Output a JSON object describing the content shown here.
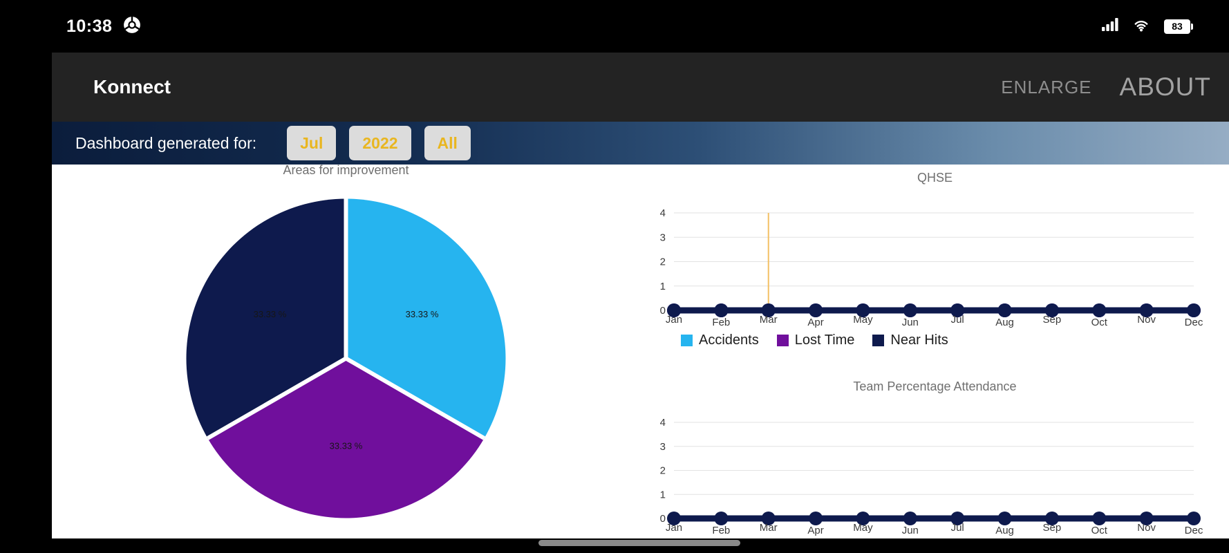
{
  "status_bar": {
    "time": "10:38",
    "battery": "83"
  },
  "app_bar": {
    "title": "Konnect",
    "actions": [
      {
        "label": "ENLARGE"
      },
      {
        "label": "ABOUT"
      }
    ]
  },
  "filter_bar": {
    "label": "Dashboard generated for:",
    "buttons": [
      {
        "label": "Jul"
      },
      {
        "label": "2022"
      },
      {
        "label": "All"
      }
    ],
    "chip_text_color": "#e9b620"
  },
  "chart_data": [
    {
      "type": "pie",
      "title": "Areas for improvement",
      "start_angle": -90,
      "direction": "clockwise",
      "slices": [
        {
          "value": 33.33,
          "label": "33.33 %",
          "color": "#26b4ef"
        },
        {
          "value": 33.33,
          "label": "33.33 %",
          "color": "#700f9c"
        },
        {
          "value": 33.33,
          "label": "33.33 %",
          "color": "#0e1a4d"
        }
      ]
    },
    {
      "type": "line",
      "title": "QHSE",
      "x": [
        "Jan",
        "Feb",
        "Mar",
        "Apr",
        "May",
        "Jun",
        "Jul",
        "Aug",
        "Sep",
        "Oct",
        "Nov",
        "Dec"
      ],
      "ylim": [
        0,
        4
      ],
      "yticks": [
        4,
        3,
        2,
        1,
        0
      ],
      "series": [
        {
          "name": "Accidents",
          "color": "#26b4ef",
          "values": [
            0,
            0,
            0,
            0,
            0,
            0,
            0,
            0,
            0,
            0,
            0,
            0
          ]
        },
        {
          "name": "Lost Time",
          "color": "#700f9c",
          "values": [
            0,
            0,
            0,
            0,
            0,
            0,
            0,
            0,
            0,
            0,
            0,
            0
          ]
        },
        {
          "name": "Near Hits",
          "color": "#0e1a4d",
          "values": [
            0,
            0,
            0,
            0,
            0,
            0,
            0,
            0,
            0,
            0,
            0,
            0
          ]
        }
      ],
      "annotation": {
        "type": "vline",
        "x": "Mar",
        "color": "#f3c064"
      },
      "legend": true,
      "grid": true
    },
    {
      "type": "line",
      "title": "Team Percentage Attendance",
      "x": [
        "Jan",
        "Feb",
        "Mar",
        "Apr",
        "May",
        "Jun",
        "Jul",
        "Aug",
        "Sep",
        "Oct",
        "Nov",
        "Dec"
      ],
      "ylim": [
        0,
        4
      ],
      "yticks": [
        4,
        3,
        2,
        1,
        0
      ],
      "series": [
        {
          "name": "",
          "color": "#0e1a4d",
          "values": [
            0,
            0,
            0,
            0,
            0,
            0,
            0,
            0,
            0,
            0,
            0,
            0
          ]
        }
      ],
      "legend": false,
      "grid": true
    }
  ],
  "nav_bar": {
    "gesture_pill": true
  }
}
